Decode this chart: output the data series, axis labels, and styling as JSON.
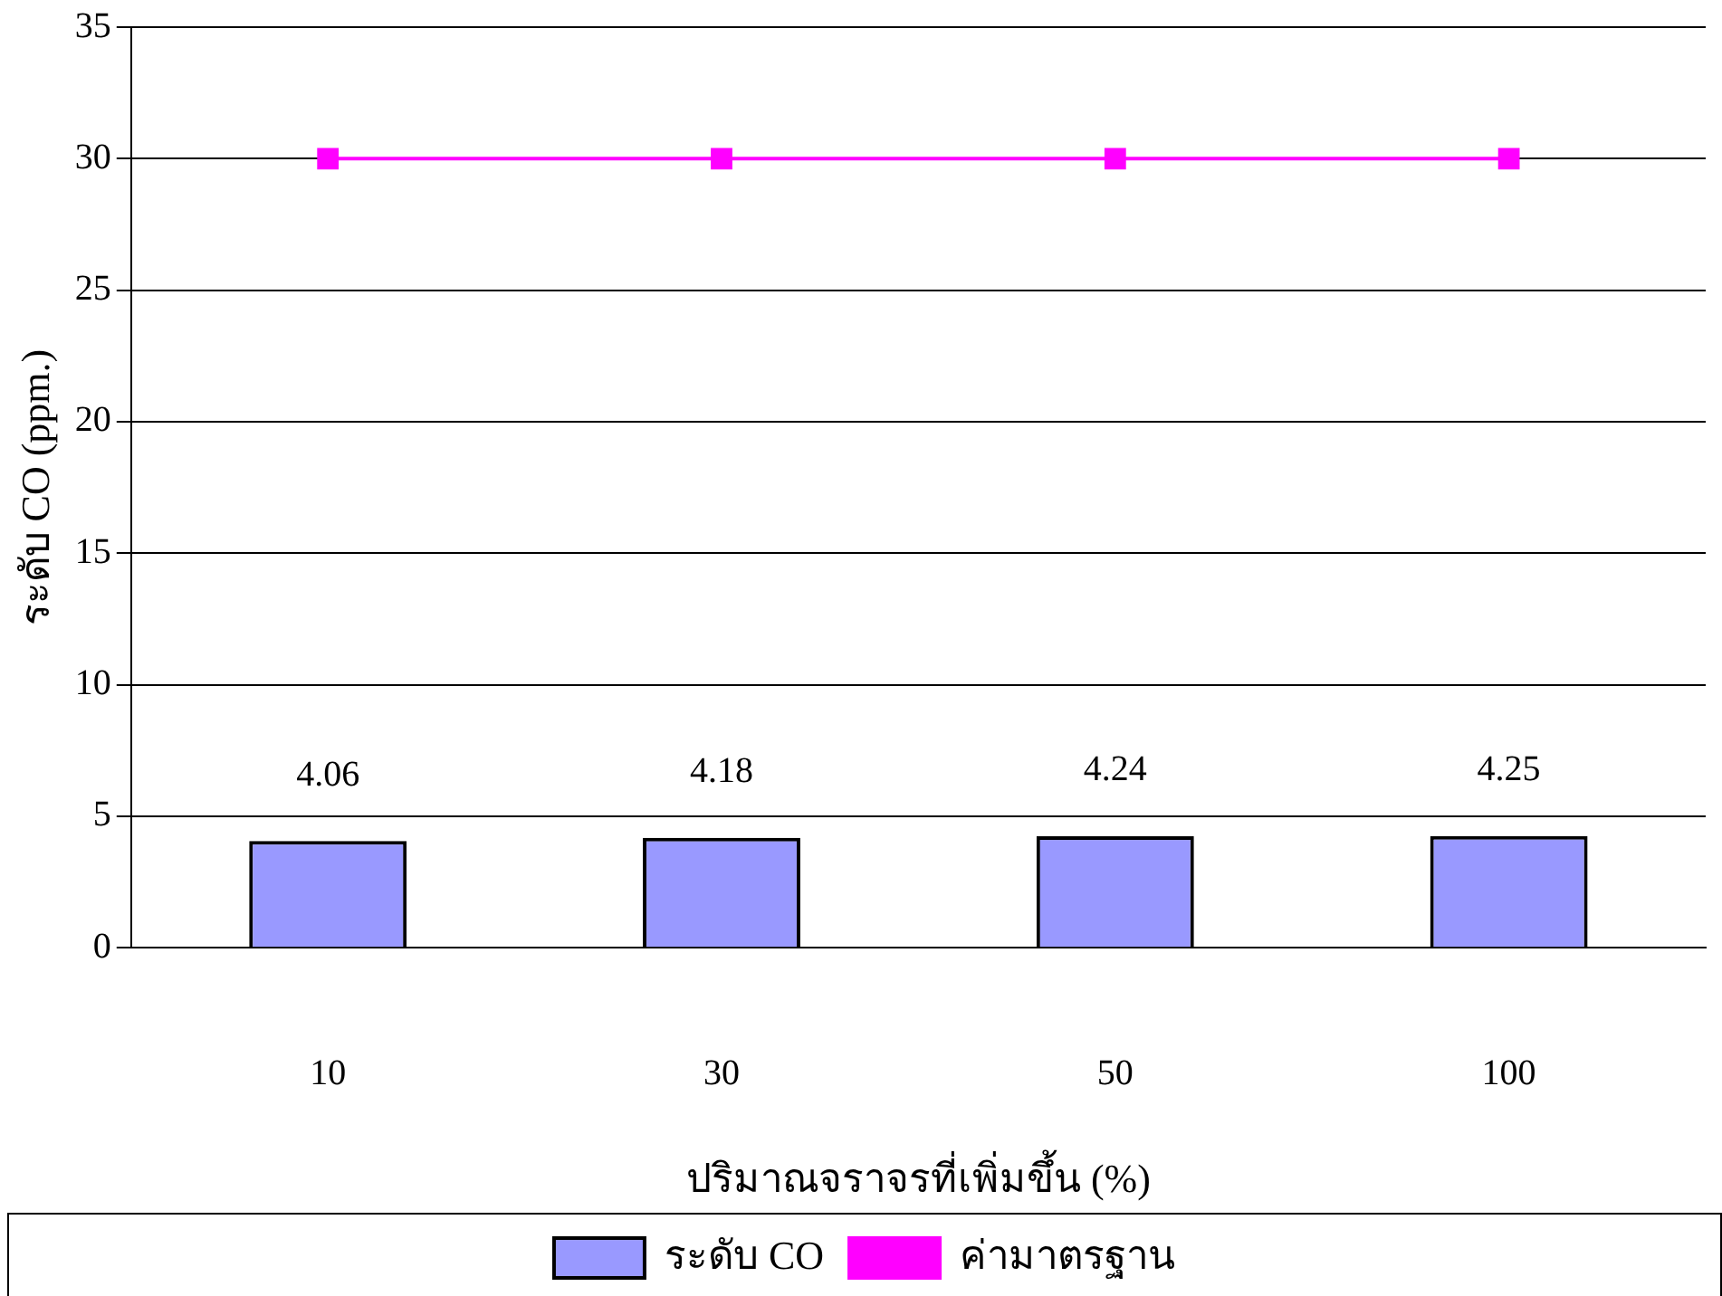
{
  "chart_data": {
    "type": "bar",
    "xlabel": "ปริมาณจราจรที่เพิ่มขึ้น (%)",
    "ylabel": "ระดับ CO (ppm.)",
    "categories": [
      "10",
      "30",
      "50",
      "100"
    ],
    "series": [
      {
        "name": "ระดับ CO",
        "color": "#9999ff",
        "values": [
          4.06,
          4.18,
          4.24,
          4.25
        ],
        "value_labels": [
          "4.06",
          "4.18",
          "4.24",
          "4.25"
        ]
      },
      {
        "name": "ค่ามาตรฐาน",
        "type": "line",
        "color": "#ff00ff",
        "values": [
          30,
          30,
          30,
          30
        ],
        "marker": "square",
        "line_style": "solid"
      }
    ],
    "ylim": [
      0,
      35
    ],
    "yticks": [
      0,
      5,
      10,
      15,
      20,
      25,
      30,
      35
    ],
    "grid": "y",
    "legend": "bottom"
  }
}
